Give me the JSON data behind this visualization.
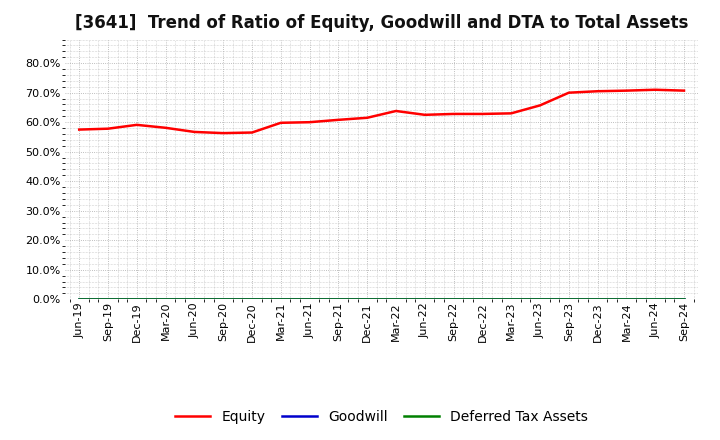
{
  "title": "[3641]  Trend of Ratio of Equity, Goodwill and DTA to Total Assets",
  "labels": [
    "Jun-19",
    "Sep-19",
    "Dec-19",
    "Mar-20",
    "Jun-20",
    "Sep-20",
    "Dec-20",
    "Mar-21",
    "Jun-21",
    "Sep-21",
    "Dec-21",
    "Mar-22",
    "Jun-22",
    "Sep-22",
    "Dec-22",
    "Mar-23",
    "Jun-23",
    "Sep-23",
    "Dec-23",
    "Mar-24",
    "Jun-24",
    "Sep-24"
  ],
  "equity": [
    0.575,
    0.578,
    0.591,
    0.581,
    0.567,
    0.563,
    0.565,
    0.598,
    0.6,
    0.608,
    0.615,
    0.638,
    0.625,
    0.628,
    0.628,
    0.63,
    0.657,
    0.7,
    0.705,
    0.707,
    0.71,
    0.707
  ],
  "goodwill": [
    0,
    0,
    0,
    0,
    0,
    0,
    0,
    0,
    0,
    0,
    0,
    0,
    0,
    0,
    0,
    0,
    0,
    0,
    0,
    0,
    0,
    0
  ],
  "dta": [
    0,
    0,
    0,
    0,
    0,
    0,
    0,
    0,
    0,
    0,
    0,
    0,
    0,
    0,
    0,
    0,
    0,
    0,
    0,
    0,
    0,
    0
  ],
  "equity_color": "#FF0000",
  "goodwill_color": "#0000CC",
  "dta_color": "#008000",
  "ylim_min": 0.0,
  "ylim_max": 0.88,
  "yticks": [
    0.0,
    0.1,
    0.2,
    0.3,
    0.4,
    0.5,
    0.6,
    0.7,
    0.8
  ],
  "ytick_labels": [
    "0.0%",
    "10.0%",
    "20.0%",
    "30.0%",
    "40.0%",
    "50.0%",
    "60.0%",
    "70.0%",
    "80.0%"
  ],
  "background_color": "#FFFFFF",
  "plot_bg_color": "#FFFFFF",
  "grid_color": "#AAAAAA",
  "legend_labels": [
    "Equity",
    "Goodwill",
    "Deferred Tax Assets"
  ],
  "title_fontsize": 12,
  "tick_fontsize": 8,
  "legend_fontsize": 10,
  "line_width": 1.8
}
